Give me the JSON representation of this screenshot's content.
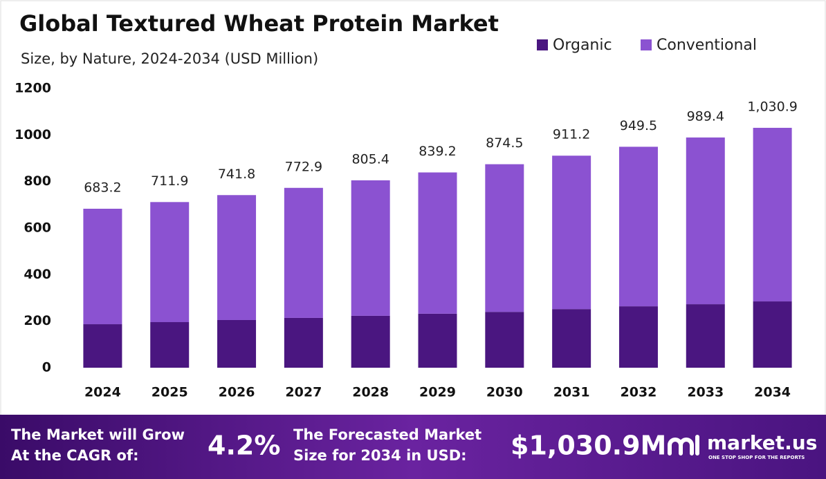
{
  "chart_data": {
    "type": "bar",
    "stacked": true,
    "grid": false,
    "title": "Global Textured Wheat Protein Market",
    "subtitle": "Size, by Nature, 2024-2034 (USD Million)",
    "categories": [
      "2024",
      "2025",
      "2026",
      "2027",
      "2028",
      "2029",
      "2030",
      "2031",
      "2032",
      "2033",
      "2034"
    ],
    "series": [
      {
        "name": "Organic",
        "color": "#4a1680",
        "values": [
          187,
          196,
          205,
          214,
          223,
          232,
          240,
          252,
          264,
          273,
          285
        ]
      },
      {
        "name": "Conventional",
        "color": "#8b52d1",
        "values": [
          496.2,
          515.9,
          536.8,
          558.9,
          582.4,
          607.2,
          634.5,
          659.2,
          685.5,
          716.4,
          745.9
        ]
      }
    ],
    "totals": [
      683.2,
      711.9,
      741.8,
      772.9,
      805.4,
      839.2,
      874.5,
      911.2,
      949.5,
      989.4,
      1030.9
    ],
    "total_labels": [
      "683.2",
      "711.9",
      "741.8",
      "772.9",
      "805.4",
      "839.2",
      "874.5",
      "911.2",
      "949.5",
      "989.4",
      "1,030.9"
    ],
    "ylim": [
      0,
      1200
    ],
    "yticks": [
      0,
      200,
      400,
      600,
      800,
      1000,
      1200
    ],
    "legend": "top-right"
  },
  "footer": {
    "cagr_text_1": "The Market will Grow",
    "cagr_text_2": "At the CAGR of:",
    "cagr": "4.2%",
    "forecast_text_1": "The Forecasted Market",
    "forecast_text_2": "Size for 2034 in USD:",
    "forecast": "$1,030.9M",
    "brand": "market.us",
    "tagline": "ONE STOP SHOP FOR THE REPORTS"
  }
}
